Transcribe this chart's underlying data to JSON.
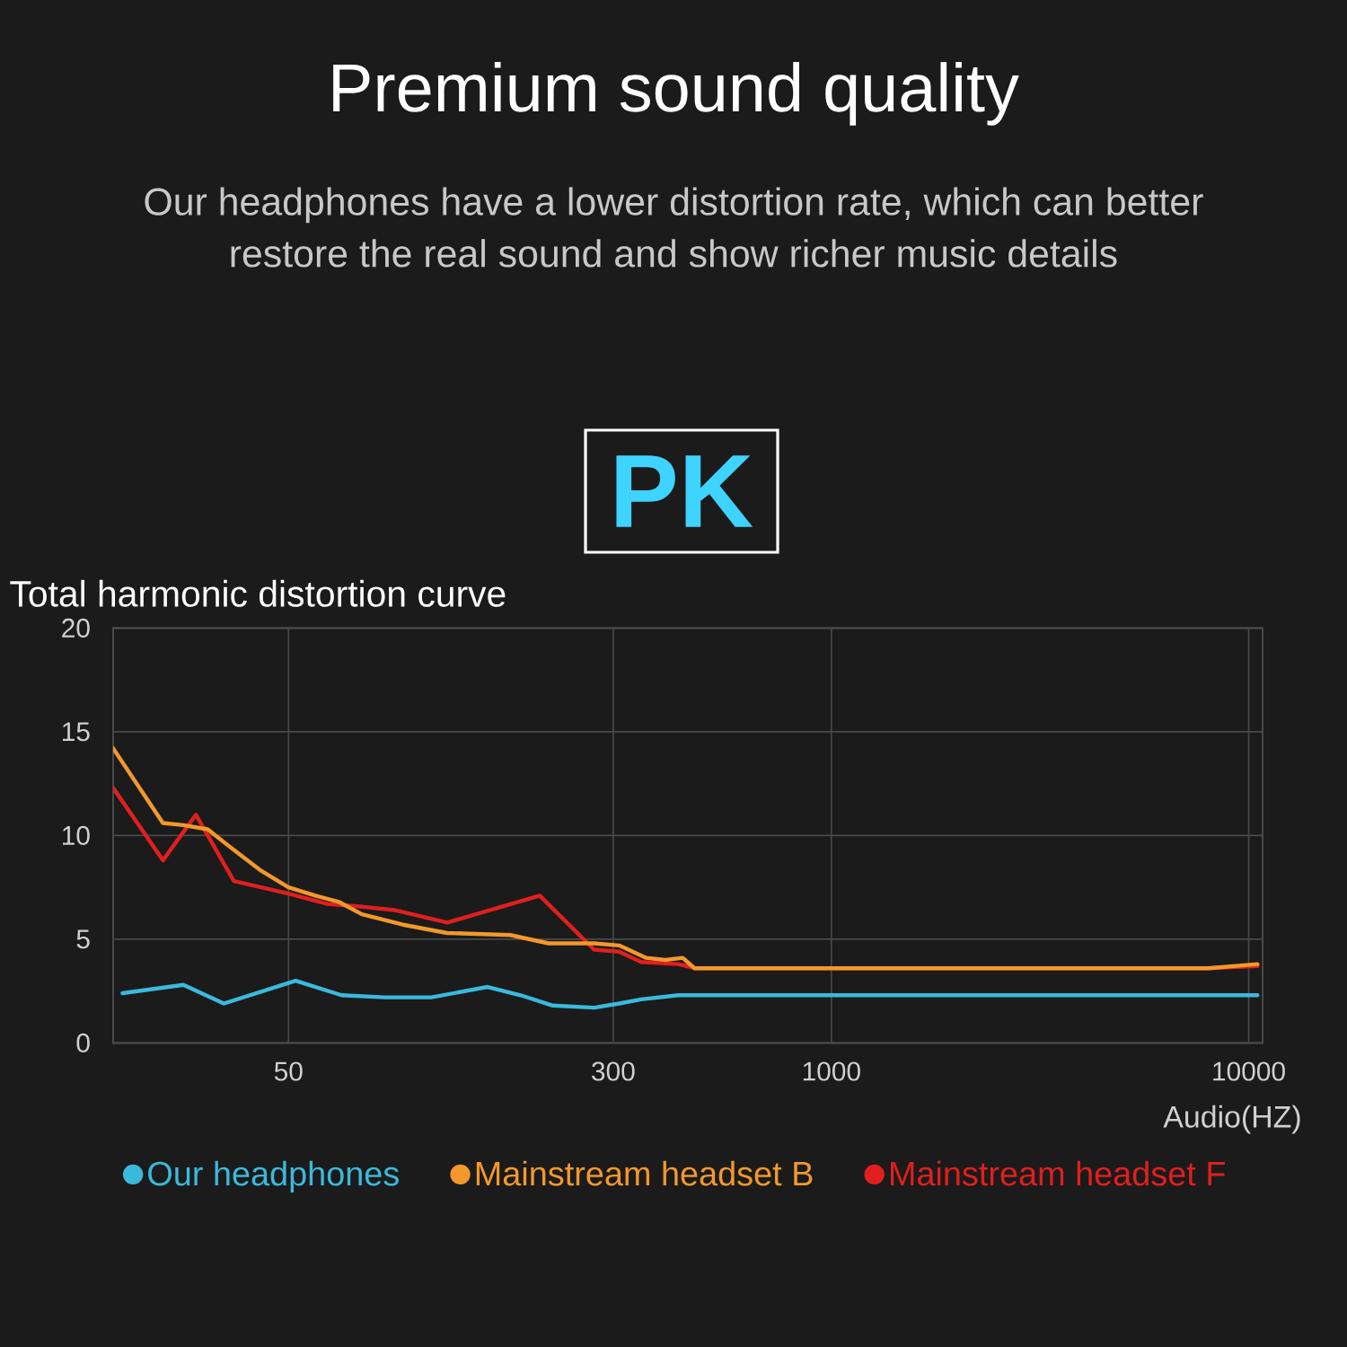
{
  "chart_data": {
    "type": "line",
    "title": "Premium sound quality",
    "subtitle": "Our headphones have a lower distortion rate, which can better restore the real sound and show richer music details",
    "ylabel": "Total harmonic distortion curve",
    "xlabel": "Audio(HZ)",
    "annotations": [
      "PK"
    ],
    "log": "x",
    "xlim": [
      19,
      10800
    ],
    "xticks": [
      50,
      300,
      1000,
      10000
    ],
    "ylim": [
      0,
      20
    ],
    "yticks": [
      0,
      5,
      10,
      15,
      20
    ],
    "grid": true,
    "legend": "bottom",
    "marker": "none",
    "line_style": "solid",
    "series": [
      {
        "name": "Our headphones",
        "color": "#3bb9dd",
        "x": [
          20,
          28,
          35,
          52,
          67,
          85,
          110,
          150,
          180,
          215,
          270,
          310,
          350,
          430,
          530,
          10500
        ],
        "values": [
          2.4,
          2.8,
          1.9,
          3.0,
          2.3,
          2.2,
          2.2,
          2.7,
          2.3,
          1.8,
          1.7,
          1.9,
          2.1,
          2.3,
          2.3,
          2.3
        ]
      },
      {
        "name": "Mainstream headset B",
        "color": "#f3982c",
        "x": [
          19,
          25,
          28,
          32,
          37,
          43,
          50,
          58,
          66,
          75,
          94,
          120,
          170,
          210,
          270,
          310,
          360,
          400,
          440,
          470,
          8000,
          10500
        ],
        "values": [
          14.2,
          10.6,
          10.5,
          10.3,
          9.3,
          8.3,
          7.5,
          7.1,
          6.8,
          6.2,
          5.7,
          5.3,
          5.2,
          4.8,
          4.8,
          4.7,
          4.1,
          4.0,
          4.1,
          3.6,
          3.6,
          3.8
        ]
      },
      {
        "name": "Mainstream headset F",
        "color": "#e01f1f",
        "x": [
          19,
          25,
          30,
          37,
          50,
          62,
          72,
          90,
          120,
          200,
          270,
          310,
          350,
          430,
          470,
          8000,
          10500
        ],
        "values": [
          12.3,
          8.8,
          11.0,
          7.8,
          7.2,
          6.7,
          6.6,
          6.4,
          5.8,
          7.1,
          4.5,
          4.4,
          3.9,
          3.8,
          3.6,
          3.6,
          3.7
        ]
      }
    ]
  }
}
